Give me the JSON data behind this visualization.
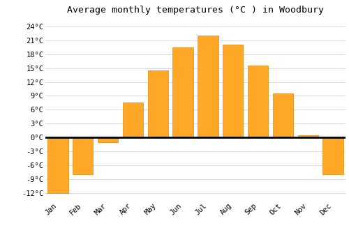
{
  "months": [
    "Jan",
    "Feb",
    "Mar",
    "Apr",
    "May",
    "Jun",
    "Jul",
    "Aug",
    "Sep",
    "Oct",
    "Nov",
    "Dec"
  ],
  "temperatures": [
    -12,
    -8,
    -1,
    7.5,
    14.5,
    19.5,
    22,
    20,
    15.5,
    9.5,
    0.5,
    -8
  ],
  "bar_color": "#FFA726",
  "bar_edge_color": "#E69520",
  "title": "Average monthly temperatures (°C ) in Woodbury",
  "ylim": [
    -13.5,
    26
  ],
  "yticks": [
    -12,
    -9,
    -6,
    -3,
    0,
    3,
    6,
    9,
    12,
    15,
    18,
    21,
    24
  ],
  "ytick_labels": [
    "-12°C",
    "-9°C",
    "-6°C",
    "-3°C",
    "0°C",
    "3°C",
    "6°C",
    "9°C",
    "12°C",
    "15°C",
    "18°C",
    "21°C",
    "24°C"
  ],
  "background_color": "#ffffff",
  "grid_color": "#dddddd",
  "title_fontsize": 9.5,
  "tick_fontsize": 7.5,
  "bar_width": 0.82
}
